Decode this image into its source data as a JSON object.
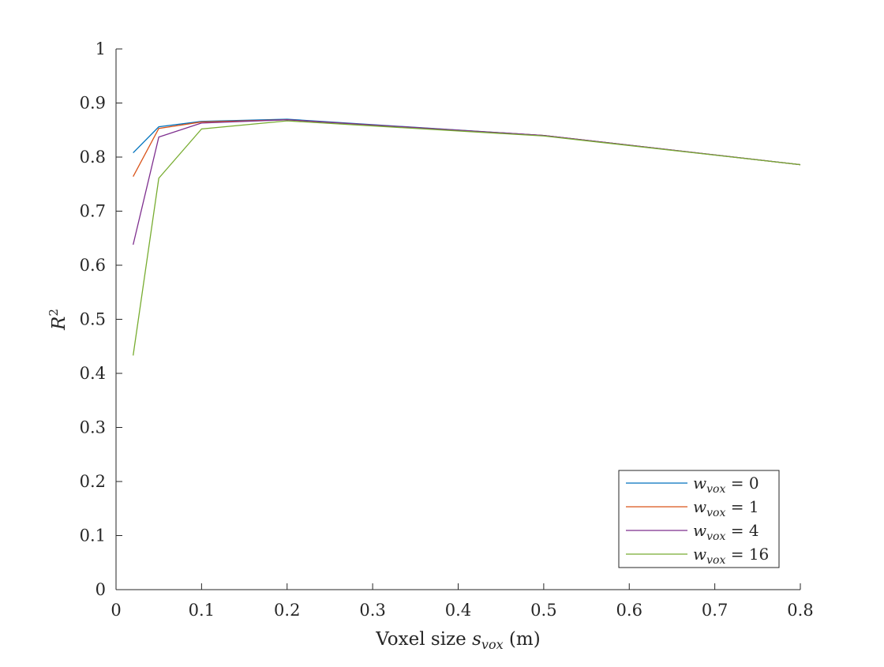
{
  "chart_data": {
    "type": "line",
    "xlabel": {
      "prefix": "Voxel size ",
      "var": "s",
      "sub": "vox",
      "suffix": " (m)"
    },
    "ylabel": {
      "var": "R",
      "sup": "2"
    },
    "xlim": [
      0,
      0.8
    ],
    "ylim": [
      0,
      1
    ],
    "xticks": [
      0,
      0.1,
      0.2,
      0.3,
      0.4,
      0.5,
      0.6,
      0.7,
      0.8
    ],
    "xtick_labels": [
      "0",
      "0.1",
      "0.2",
      "0.3",
      "0.4",
      "0.5",
      "0.6",
      "0.7",
      "0.8"
    ],
    "yticks": [
      0,
      0.1,
      0.2,
      0.3,
      0.4,
      0.5,
      0.6,
      0.7,
      0.8,
      0.9,
      1
    ],
    "ytick_labels": [
      "0",
      "0.1",
      "0.2",
      "0.3",
      "0.4",
      "0.5",
      "0.6",
      "0.7",
      "0.8",
      "0.9",
      "1"
    ],
    "grid": false,
    "legend_position": "bottom-right",
    "x": [
      0.02,
      0.05,
      0.1,
      0.2,
      0.5,
      0.8
    ],
    "series": [
      {
        "name": "w_vox = 0",
        "var": "w",
        "sub": "vox",
        "rhs": " = 0",
        "color": "#0072BD",
        "values": [
          0.808,
          0.856,
          0.866,
          0.87,
          0.84,
          0.786
        ]
      },
      {
        "name": "w_vox = 1",
        "var": "w",
        "sub": "vox",
        "rhs": " = 1",
        "color": "#D95319",
        "values": [
          0.764,
          0.853,
          0.865,
          0.869,
          0.84,
          0.786
        ]
      },
      {
        "name": "w_vox = 4",
        "var": "w",
        "sub": "vox",
        "rhs": " = 4",
        "color": "#7E2F8E",
        "values": [
          0.638,
          0.837,
          0.863,
          0.869,
          0.84,
          0.786
        ]
      },
      {
        "name": "w_vox = 16",
        "var": "w",
        "sub": "vox",
        "rhs": " = 16",
        "color": "#77AC30",
        "values": [
          0.433,
          0.761,
          0.852,
          0.867,
          0.839,
          0.786
        ]
      }
    ]
  }
}
